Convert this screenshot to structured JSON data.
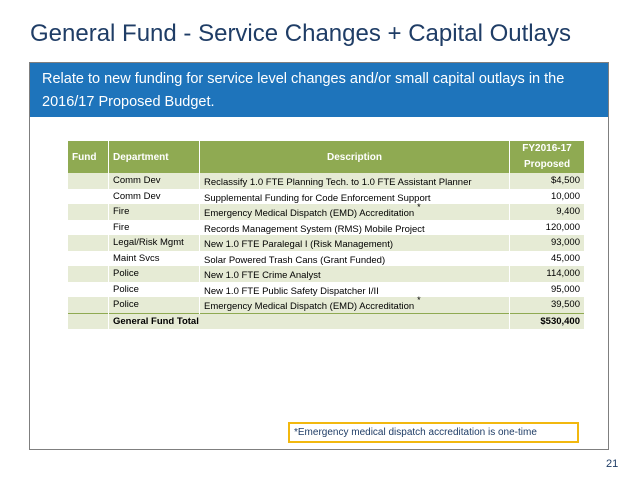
{
  "slide": {
    "title": "General Fund - Service Changes + Capital Outlays",
    "banner_text": "Relate to new funding for service level changes and/or small capital outlays in the 2016/17 Proposed Budget.",
    "page_number": "21",
    "footnote": "*Emergency medical dispatch accreditation is one-time"
  },
  "table": {
    "headers": {
      "fund": "Fund",
      "department": "Department",
      "description": "Description",
      "amount_line1": "FY2016-17",
      "amount_line2": "Proposed"
    },
    "rows": [
      {
        "fund": "",
        "department": "Comm Dev",
        "description": "Reclassify 1.0 FTE Planning Tech. to 1.0 FTE Assistant Planner",
        "star": "",
        "amount": "$4,500"
      },
      {
        "fund": "",
        "department": "Comm Dev",
        "description": "Supplemental Funding for Code Enforcement Support",
        "star": "",
        "amount": "10,000"
      },
      {
        "fund": "",
        "department": "Fire",
        "description": "Emergency Medical Dispatch (EMD) Accreditation",
        "star": "*",
        "amount": "9,400"
      },
      {
        "fund": "",
        "department": "Fire",
        "description": "Records Management System (RMS) Mobile Project",
        "star": "",
        "amount": "120,000"
      },
      {
        "fund": "",
        "department": "Legal/Risk Mgmt",
        "description": "New 1.0 FTE Paralegal I (Risk Management)",
        "star": "",
        "amount": "93,000"
      },
      {
        "fund": "",
        "department": "Maint Svcs",
        "description": "Solar Powered Trash Cans (Grant Funded)",
        "star": "",
        "amount": "45,000"
      },
      {
        "fund": "",
        "department": "Police",
        "description": "New 1.0 FTE Crime Analyst",
        "star": "",
        "amount": "114,000"
      },
      {
        "fund": "",
        "department": "Police",
        "description": "New 1.0 FTE Public Safety Dispatcher I/II",
        "star": "",
        "amount": "95,000"
      },
      {
        "fund": "",
        "department": "Police",
        "description": "Emergency Medical Dispatch (EMD) Accreditation",
        "star": "*",
        "amount": "39,500"
      }
    ],
    "total": {
      "label": "General Fund Total",
      "amount": "$530,400"
    }
  },
  "colors": {
    "title": "#1f3d66",
    "banner": "#1e74bb",
    "table_header": "#8faa52",
    "row_shade": "#e6ebd5",
    "footnote_border": "#f2b80f"
  }
}
